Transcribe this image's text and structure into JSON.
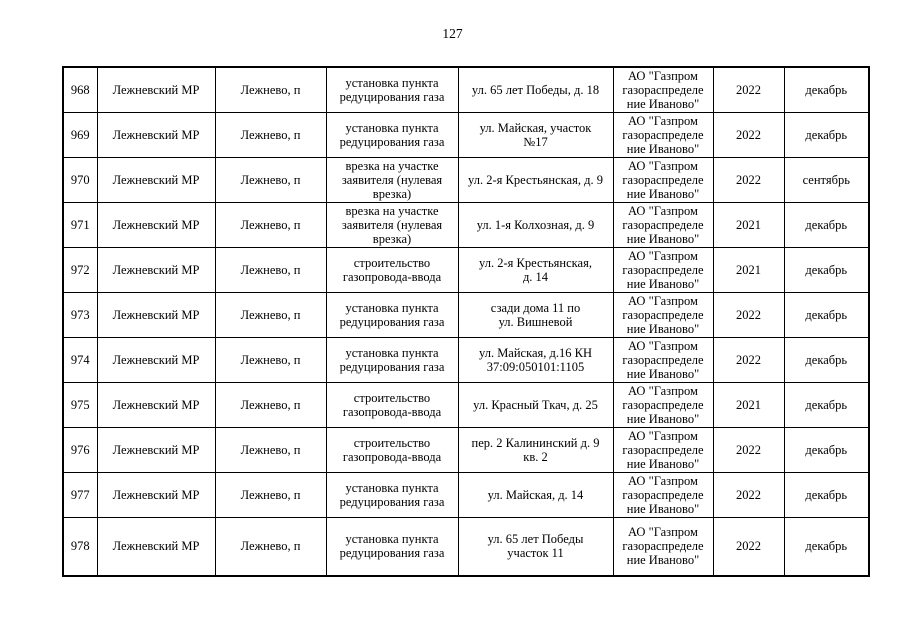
{
  "page": {
    "number": "127"
  },
  "table": {
    "rows": [
      {
        "num": "968",
        "district": "Лежневский МР",
        "settlement": "Лежнево, п",
        "work": "установка пункта редуцирования газа",
        "address": "ул. 65 лет Победы, д. 18",
        "org": [
          "АО \"Газпром",
          "газораспределе",
          "ние Иваново\""
        ],
        "year": "2022",
        "month": "декабрь"
      },
      {
        "num": "969",
        "district": "Лежневский МР",
        "settlement": "Лежнево, п",
        "work": "установка пункта редуцирования газа",
        "address": [
          "ул. Майская, участок",
          "№17"
        ],
        "org": [
          "АО \"Газпром",
          "газораспределе",
          "ние Иваново\""
        ],
        "year": "2022",
        "month": "декабрь"
      },
      {
        "num": "970",
        "district": "Лежневский МР",
        "settlement": "Лежнево, п",
        "work": "врезка на участке заявителя (нулевая врезка)",
        "address": "ул. 2-я Крестьянская, д. 9",
        "org": [
          "АО \"Газпром",
          "газораспределе",
          "ние Иваново\""
        ],
        "year": "2022",
        "month": "сентябрь"
      },
      {
        "num": "971",
        "district": "Лежневский МР",
        "settlement": "Лежнево, п",
        "work": "врезка на участке заявителя (нулевая врезка)",
        "address": "ул. 1-я Колхозная, д. 9",
        "org": [
          "АО \"Газпром",
          "газораспределе",
          "ние Иваново\""
        ],
        "year": "2021",
        "month": "декабрь"
      },
      {
        "num": "972",
        "district": "Лежневский МР",
        "settlement": "Лежнево, п",
        "work": "строительство газопровода-ввода",
        "address": [
          "ул. 2-я Крестьянская,",
          "д. 14"
        ],
        "org": [
          "АО \"Газпром",
          "газораспределе",
          "ние Иваново\""
        ],
        "year": "2021",
        "month": "декабрь"
      },
      {
        "num": "973",
        "district": "Лежневский МР",
        "settlement": "Лежнево, п",
        "work": "установка пункта редуцирования газа",
        "address": [
          "сзади дома 11 по",
          "ул. Вишневой"
        ],
        "org": [
          "АО \"Газпром",
          "газораспределе",
          "ние Иваново\""
        ],
        "year": "2022",
        "month": "декабрь"
      },
      {
        "num": "974",
        "district": "Лежневский МР",
        "settlement": "Лежнево, п",
        "work": "установка пункта редуцирования газа",
        "address": [
          "ул. Майская, д.16 КН",
          "37:09:050101:1105"
        ],
        "org": [
          "АО \"Газпром",
          "газораспределе",
          "ние Иваново\""
        ],
        "year": "2022",
        "month": "декабрь"
      },
      {
        "num": "975",
        "district": "Лежневский МР",
        "settlement": "Лежнево, п",
        "work": "строительство газопровода-ввода",
        "address": "ул. Красный Ткач, д. 25",
        "org": [
          "АО \"Газпром",
          "газораспределе",
          "ние Иваново\""
        ],
        "year": "2021",
        "month": "декабрь"
      },
      {
        "num": "976",
        "district": "Лежневский МР",
        "settlement": "Лежнево, п",
        "work": "строительство газопровода-ввода",
        "address": [
          "пер. 2 Калининский д. 9",
          "кв. 2"
        ],
        "org": [
          "АО \"Газпром",
          "газораспределе",
          "ние Иваново\""
        ],
        "year": "2022",
        "month": "декабрь"
      },
      {
        "num": "977",
        "district": "Лежневский МР",
        "settlement": "Лежнево, п",
        "work": "установка пункта редуцирования газа",
        "address": "ул. Майская, д. 14",
        "org": [
          "АО \"Газпром",
          "газораспределе",
          "ние Иваново\""
        ],
        "year": "2022",
        "month": "декабрь"
      },
      {
        "num": "978",
        "district": "Лежневский МР",
        "settlement": "Лежнево, п",
        "work": "установка пункта редуцирования газа",
        "address": [
          "ул. 65 лет Победы",
          "участок 11"
        ],
        "org": [
          "АО \"Газпром",
          "газораспределе",
          "ние Иваново\""
        ],
        "year": "2022",
        "month": "декабрь"
      }
    ]
  }
}
